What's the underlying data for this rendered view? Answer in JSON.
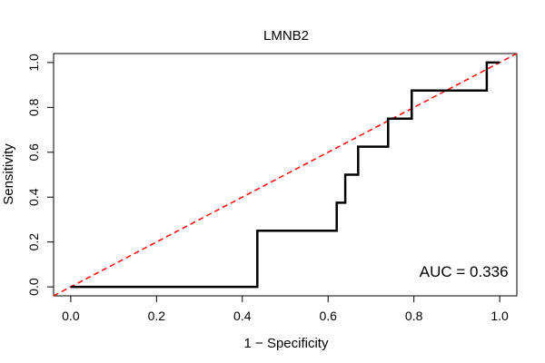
{
  "chart_data": {
    "type": "line",
    "title": "LMNB2",
    "xlabel": "1 − Specificity",
    "ylabel": "Sensitivity",
    "xlim": [
      -0.04,
      1.04
    ],
    "ylim": [
      -0.04,
      1.04
    ],
    "grid": false,
    "xticks": [
      {
        "value": 0.0,
        "label": "0.0"
      },
      {
        "value": 0.2,
        "label": "0.2"
      },
      {
        "value": 0.4,
        "label": "0.4"
      },
      {
        "value": 0.6,
        "label": "0.6"
      },
      {
        "value": 0.8,
        "label": "0.8"
      },
      {
        "value": 1.0,
        "label": "1.0"
      }
    ],
    "yticks": [
      {
        "value": 0.0,
        "label": "0.0"
      },
      {
        "value": 0.2,
        "label": "0.2"
      },
      {
        "value": 0.4,
        "label": "0.4"
      },
      {
        "value": 0.6,
        "label": "0.6"
      },
      {
        "value": 0.8,
        "label": "0.8"
      },
      {
        "value": 1.0,
        "label": "1.0"
      }
    ],
    "series": [
      {
        "color": "#000000",
        "style": "solid",
        "x": [
          0.0,
          0.435,
          0.435,
          0.62,
          0.62,
          0.64,
          0.64,
          0.67,
          0.67,
          0.74,
          0.74,
          0.795,
          0.795,
          0.97,
          0.97,
          1.0
        ],
        "y": [
          0.0,
          0.0,
          0.25,
          0.25,
          0.375,
          0.375,
          0.5,
          0.5,
          0.625,
          0.625,
          0.75,
          0.75,
          0.875,
          0.875,
          1.0,
          1.0
        ]
      }
    ],
    "reference_line": {
      "x": [
        -0.04,
        1.04
      ],
      "y": [
        -0.04,
        1.04
      ],
      "color": "#ff0000",
      "style": "dashed"
    },
    "annotations": [
      {
        "text": "AUC = 0.336",
        "x": 1.02,
        "y": 0.02,
        "anchor": "end"
      }
    ]
  }
}
